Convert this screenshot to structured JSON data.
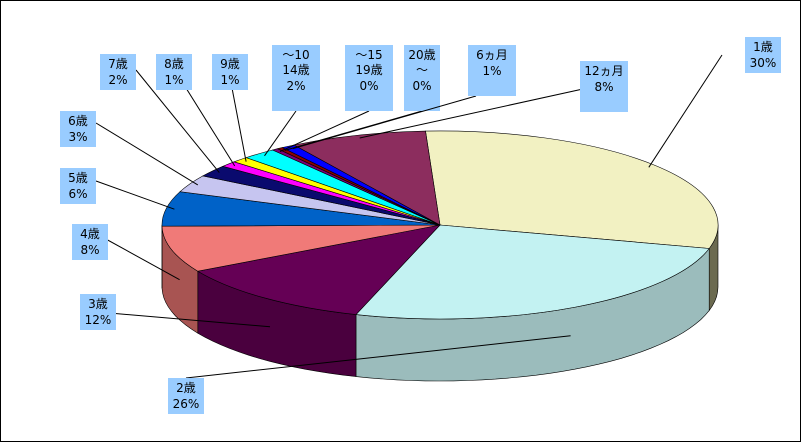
{
  "chart_data": {
    "type": "pie",
    "title": "",
    "three_d": true,
    "legend": "none",
    "slices": [
      {
        "name": "1歳",
        "pct_label": "30%",
        "value": 30,
        "color": "#f2f1c2",
        "side": "#6b6a50"
      },
      {
        "name": "2歳",
        "pct_label": "26%",
        "value": 26,
        "color": "#c3f2f2",
        "side": "#9bbcbc"
      },
      {
        "name": "3歳",
        "pct_label": "12%",
        "value": 12,
        "color": "#650055",
        "side": "#4a003e"
      },
      {
        "name": "4歳",
        "pct_label": "8%",
        "value": 8,
        "color": "#f07a78",
        "side": "#a85452"
      },
      {
        "name": "5歳",
        "pct_label": "6%",
        "value": 6,
        "color": "#0062c8",
        "side": "#00448c"
      },
      {
        "name": "6歳",
        "pct_label": "3%",
        "value": 3,
        "color": "#c6c5f0",
        "side": "#8a89a8"
      },
      {
        "name": "7歳",
        "pct_label": "2%",
        "value": 2,
        "color": "#0a0a6e",
        "side": "#06064c"
      },
      {
        "name": "8歳",
        "pct_label": "1%",
        "value": 1,
        "color": "#ff00ff",
        "side": "#b000b0"
      },
      {
        "name": "9歳",
        "pct_label": "1%",
        "value": 1,
        "color": "#ffff00",
        "side": "#b0b000"
      },
      {
        "name": "～10\n14歳",
        "pct_label": "2%",
        "value": 2,
        "color": "#00ffff",
        "side": "#00b0b0"
      },
      {
        "name": "～15\n19歳",
        "pct_label": "0%",
        "value": 0.35,
        "color": "#7a0078",
        "side": "#540052"
      },
      {
        "name": "20歳\n～",
        "pct_label": "0%",
        "value": 0.35,
        "color": "#8b0000",
        "side": "#600000"
      },
      {
        "name": "6ヵ月",
        "pct_label": "1%",
        "value": 0.8,
        "color": "#0000ff",
        "side": "#0000b0"
      },
      {
        "name": "12ヵ月",
        "pct_label": "8%",
        "value": 8,
        "color": "#8c2d5e",
        "side": "#621f42"
      }
    ]
  }
}
